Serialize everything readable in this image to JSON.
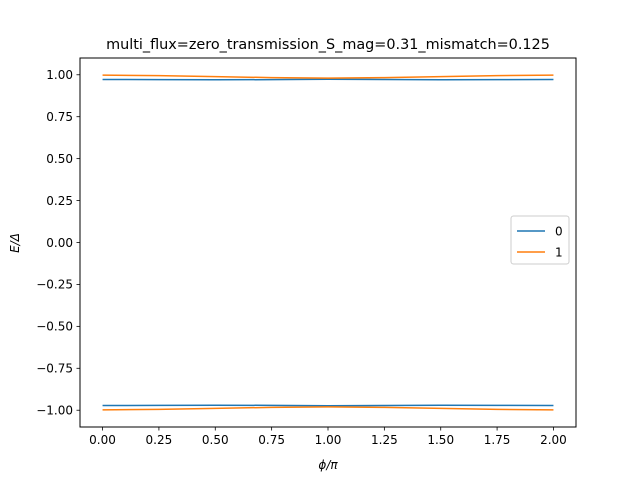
{
  "chart_data": {
    "type": "line",
    "title": "multi_flux=zero_transmission_S_mag=0.31_mismatch=0.125",
    "xlabel": "ϕ/π",
    "ylabel": "E/Δ",
    "xlim": [
      -0.1,
      2.1
    ],
    "ylim": [
      -1.1,
      1.1
    ],
    "xticks": [
      0.0,
      0.25,
      0.5,
      0.75,
      1.0,
      1.25,
      1.5,
      1.75,
      2.0
    ],
    "xtick_labels": [
      "0.00",
      "0.25",
      "0.50",
      "0.75",
      "1.00",
      "1.25",
      "1.50",
      "1.75",
      "2.00"
    ],
    "yticks": [
      -1.0,
      -0.75,
      -0.5,
      -0.25,
      0.0,
      0.25,
      0.5,
      0.75,
      1.0
    ],
    "ytick_labels": [
      "−1.00",
      "−0.75",
      "−0.50",
      "−0.25",
      "0.00",
      "0.25",
      "0.50",
      "0.75",
      "1.00"
    ],
    "grid": false,
    "legend_position": "center-right",
    "x": [
      0.0,
      0.25,
      0.5,
      0.75,
      1.0,
      1.25,
      1.5,
      1.75,
      2.0
    ],
    "series": [
      {
        "name": "0",
        "color": "#1f77b4",
        "branches": [
          [
            0.972,
            0.971,
            0.97,
            0.971,
            0.973,
            0.972,
            0.97,
            0.971,
            0.972
          ],
          [
            -0.972,
            -0.971,
            -0.97,
            -0.971,
            -0.973,
            -0.972,
            -0.97,
            -0.971,
            -0.972
          ]
        ]
      },
      {
        "name": "1",
        "color": "#ff7f0e",
        "branches": [
          [
            0.998,
            0.995,
            0.989,
            0.983,
            0.98,
            0.983,
            0.989,
            0.995,
            0.998
          ],
          [
            -0.998,
            -0.995,
            -0.989,
            -0.983,
            -0.98,
            -0.983,
            -0.989,
            -0.995,
            -0.998
          ]
        ]
      }
    ]
  }
}
